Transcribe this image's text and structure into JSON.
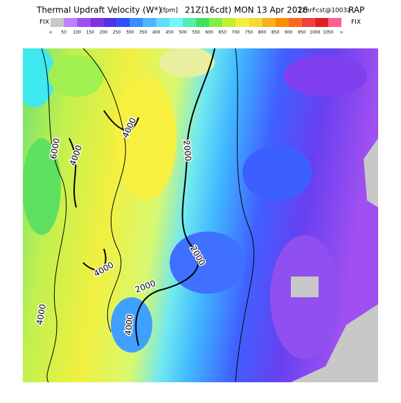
{
  "header": {
    "title": "Thermal Updraft Velocity (W*)",
    "units": "[fpm]",
    "valid_time": "21Z(16cdt) MON 13 Apr 2026",
    "forecast": "12hrFcst@1003z",
    "model": "RAP"
  },
  "legend": {
    "left_label": "FIX",
    "right_label": "FIX",
    "colors": [
      "#c8c8c8",
      "#c080ff",
      "#a050f0",
      "#8030e0",
      "#5030e8",
      "#3050ff",
      "#3c8cff",
      "#50b4ff",
      "#60dcff",
      "#70f8f8",
      "#50f0b0",
      "#40e060",
      "#80f040",
      "#c0f030",
      "#f0f040",
      "#f8d830",
      "#f8b020",
      "#f89000",
      "#f86820",
      "#f04040",
      "#e02020",
      "#ff6090"
    ],
    "labels": [
      "<",
      "50",
      "100",
      "150",
      "200",
      "250",
      "300",
      "350",
      "400",
      "450",
      "500",
      "550",
      "600",
      "650",
      "700",
      "750",
      "800",
      "850",
      "900",
      "950",
      "1000",
      "1050",
      ">"
    ]
  },
  "contour_labels": [
    "4000",
    "2000",
    "6000",
    "4000",
    "2000",
    "4000",
    "2000",
    "4000",
    "4000"
  ]
}
